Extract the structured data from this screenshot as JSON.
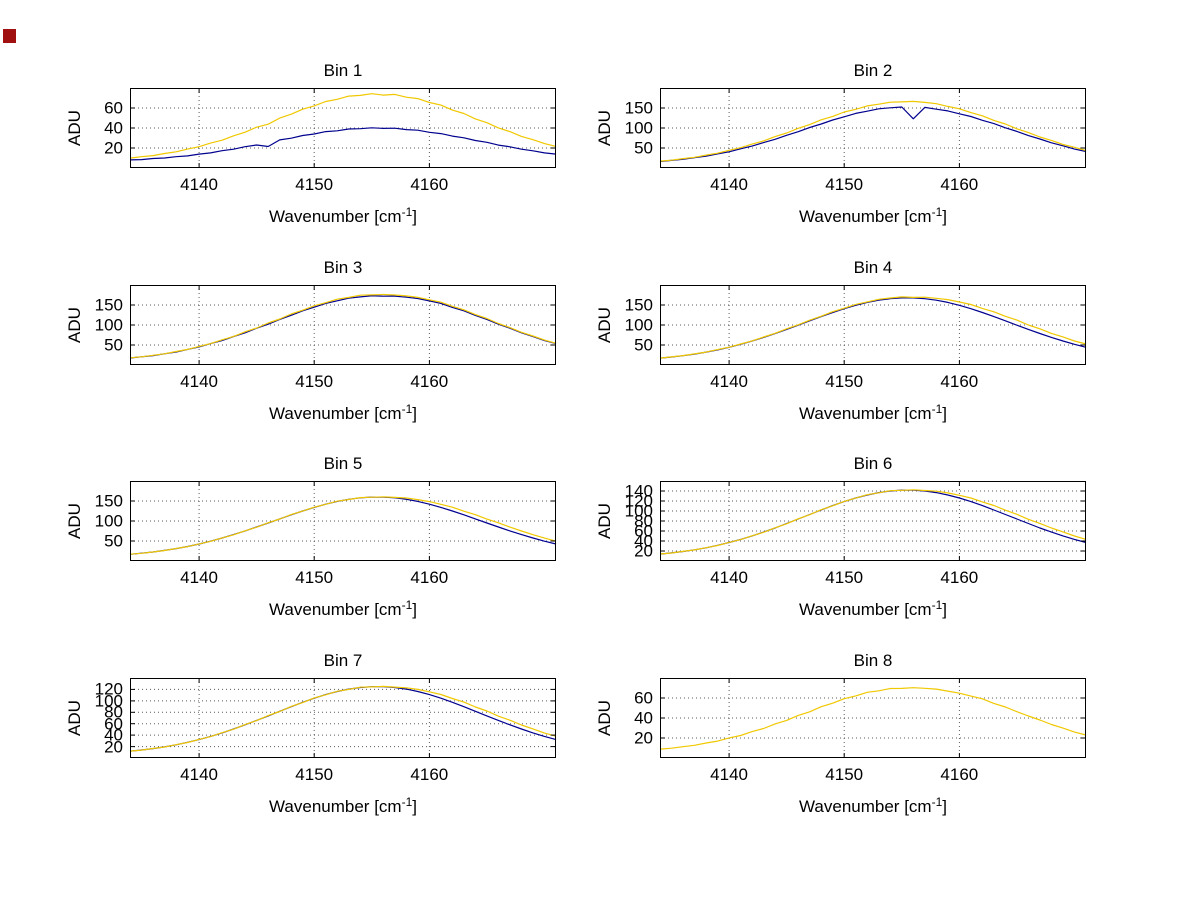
{
  "figure": {
    "background": "#ffffff"
  },
  "labels": {
    "xlabel_pre": "Wavenumber [cm",
    "xlabel_sup": "-1",
    "xlabel_post": "]",
    "ylabel": "ADU"
  },
  "colors": {
    "blue_trace": "#00008f",
    "yellow_trace": "#f0c800",
    "axis": "#000000",
    "grid": "#5a5a5a"
  },
  "x_values": [
    4134,
    4135,
    4136,
    4137,
    4138,
    4139,
    4140,
    4141,
    4142,
    4143,
    4144,
    4145,
    4146,
    4147,
    4148,
    4149,
    4150,
    4151,
    4152,
    4153,
    4154,
    4155,
    4156,
    4157,
    4158,
    4159,
    4160,
    4161,
    4162,
    4163,
    4164,
    4165,
    4166,
    4167,
    4168,
    4169,
    4170,
    4171
  ],
  "chart_data": [
    {
      "type": "line",
      "title": "Bin 1",
      "xlabel": "Wavenumber [cm^-1]",
      "ylabel": "ADU",
      "xlim": [
        4134,
        4171
      ],
      "ylim": [
        0,
        80
      ],
      "xticks": [
        4140,
        4150,
        4160
      ],
      "yticks": [
        20,
        40,
        60
      ],
      "grid": true,
      "series": [
        {
          "name": "blue-trace",
          "color": "#00008f",
          "values": [
            8.1,
            8.4,
            9.5,
            10.0,
            11.3,
            12.1,
            13.9,
            15.1,
            17.3,
            18.8,
            21.3,
            23.0,
            21.5,
            28.1,
            29.8,
            32.5,
            34.0,
            36.4,
            37.2,
            39.0,
            39.3,
            40.2,
            39.6,
            39.8,
            38.4,
            37.8,
            35.7,
            34.4,
            31.9,
            30.2,
            27.5,
            25.7,
            22.9,
            21.2,
            18.8,
            17.2,
            15.1,
            13.9
          ]
        },
        {
          "name": "yellow-trace",
          "color": "#f0c800",
          "values": [
            9.9,
            11.3,
            12.4,
            14.5,
            16.2,
            18.9,
            21.3,
            24.9,
            27.8,
            32.2,
            35.8,
            40.8,
            43.8,
            49.9,
            53.8,
            58.8,
            62.1,
            66.5,
            68.7,
            71.9,
            72.6,
            74.3,
            72.9,
            73.6,
            70.8,
            69.4,
            65.5,
            62.9,
            57.9,
            54.5,
            49.1,
            45.3,
            40.1,
            36.4,
            31.6,
            28.3,
            24.4,
            21.6
          ]
        }
      ]
    },
    {
      "type": "line",
      "title": "Bin 2",
      "xlabel": "Wavenumber [cm^-1]",
      "ylabel": "ADU",
      "xlim": [
        4134,
        4171
      ],
      "ylim": [
        0,
        200
      ],
      "xticks": [
        4140,
        4150,
        4160
      ],
      "yticks": [
        50,
        100,
        150
      ],
      "grid": true,
      "series": [
        {
          "name": "blue-trace",
          "color": "#00008f",
          "values": [
            16.2,
            18.9,
            21.7,
            25.8,
            29.6,
            35.3,
            40.6,
            47.9,
            54.8,
            63.6,
            71.8,
            81.7,
            90.7,
            101.2,
            110.1,
            120.1,
            127.9,
            136.4,
            142.0,
            147.9,
            150.6,
            152.4,
            123.0,
            151.6,
            147.1,
            142.8,
            135.6,
            128.7,
            119.3,
            110.9,
            100.4,
            91.5,
            81.0,
            72.5,
            62.9,
            55.5,
            47.2,
            41.3
          ]
        },
        {
          "name": "yellow-trace",
          "color": "#f0c800",
          "values": [
            17.3,
            19.6,
            23.4,
            26.8,
            32.2,
            37.1,
            44.3,
            50.8,
            59.8,
            67.8,
            78.5,
            87.4,
            99.2,
            108.6,
            120.5,
            129.1,
            139.9,
            146.8,
            155.3,
            159.4,
            164.6,
            165.2,
            166.4,
            164.1,
            160.8,
            153.9,
            148.0,
            138.5,
            130.4,
            119.1,
            109.9,
            97.9,
            88.6,
            77.4,
            68.9,
            58.8,
            51.7,
            43.5
          ]
        }
      ]
    },
    {
      "type": "line",
      "title": "Bin 3",
      "xlabel": "Wavenumber [cm^-1]",
      "ylabel": "ADU",
      "xlim": [
        4134,
        4171
      ],
      "ylim": [
        0,
        200
      ],
      "xticks": [
        4140,
        4150,
        4160
      ],
      "yticks": [
        50,
        100,
        150
      ],
      "grid": true,
      "series": [
        {
          "name": "blue-trace",
          "color": "#00008f",
          "values": [
            17.4,
            20.5,
            23.6,
            28.0,
            32.6,
            39.0,
            45.2,
            53.4,
            61.3,
            71.2,
            80.5,
            91.9,
            102.1,
            114.0,
            124.2,
            135.5,
            144.5,
            154.0,
            160.6,
            167.0,
            170.2,
            173.1,
            171.9,
            172.2,
            169.5,
            166.2,
            160.3,
            153.9,
            144.1,
            135.4,
            124.0,
            114.1,
            102.0,
            92.1,
            80.4,
            71.3,
            61.1,
            53.5
          ]
        },
        {
          "name": "yellow-trace",
          "color": "#f0c800",
          "values": [
            17.9,
            20.4,
            24.3,
            28.1,
            33.7,
            39.0,
            46.5,
            53.5,
            63.1,
            71.6,
            82.9,
            92.6,
            104.9,
            115.0,
            127.4,
            136.9,
            148.1,
            155.8,
            164.4,
            169.1,
            174.5,
            175.2,
            176.3,
            174.9,
            172.8,
            168.9,
            163.1,
            156.9,
            146.8,
            137.9,
            126.1,
            116.2,
            103.7,
            93.6,
            81.8,
            72.4,
            62.2,
            54.3
          ]
        }
      ]
    },
    {
      "type": "line",
      "title": "Bin 4",
      "xlabel": "Wavenumber [cm^-1]",
      "ylabel": "ADU",
      "xlim": [
        4134,
        4171
      ],
      "ylim": [
        0,
        200
      ],
      "xticks": [
        4140,
        4150,
        4160
      ],
      "yticks": [
        50,
        100,
        150
      ],
      "grid": true,
      "series": [
        {
          "name": "blue-trace",
          "color": "#00008f",
          "values": [
            17.1,
            20.0,
            23.3,
            27.3,
            32.2,
            37.8,
            44.3,
            51.7,
            60.0,
            69.0,
            78.7,
            89.0,
            99.6,
            110.4,
            121.1,
            131.3,
            140.8,
            149.2,
            156.4,
            162.0,
            165.8,
            167.8,
            167.8,
            165.8,
            162.0,
            156.4,
            149.2,
            140.8,
            131.3,
            121.1,
            110.4,
            99.6,
            89.0,
            78.7,
            69.0,
            60.0,
            51.7,
            44.3
          ]
        },
        {
          "name": "yellow-trace",
          "color": "#f0c800",
          "values": [
            17.2,
            20.3,
            23.4,
            27.8,
            32.3,
            38.5,
            44.5,
            52.5,
            60.3,
            70.1,
            79.2,
            90.4,
            100.4,
            112.1,
            122.1,
            133.2,
            142.0,
            151.4,
            157.8,
            164.3,
            167.4,
            170.2,
            168.9,
            169.4,
            166.8,
            163.5,
            157.6,
            151.3,
            141.6,
            133.0,
            121.8,
            112.2,
            100.1,
            90.6,
            78.9,
            70.2,
            60.1,
            52.6
          ]
        }
      ]
    },
    {
      "type": "line",
      "title": "Bin 5",
      "xlabel": "Wavenumber [cm^-1]",
      "ylabel": "ADU",
      "xlim": [
        4134,
        4171
      ],
      "ylim": [
        0,
        200
      ],
      "xticks": [
        4140,
        4150,
        4160
      ],
      "yticks": [
        50,
        100,
        150
      ],
      "grid": true,
      "series": [
        {
          "name": "blue-trace",
          "color": "#00008f",
          "values": [
            16.8,
            19.4,
            22.5,
            26.4,
            31.0,
            36.3,
            42.5,
            49.5,
            57.4,
            65.9,
            75.2,
            85.0,
            95.1,
            105.3,
            115.4,
            125.1,
            134.1,
            142.1,
            148.9,
            154.2,
            157.9,
            159.8,
            159.8,
            157.9,
            154.2,
            148.9,
            142.1,
            134.1,
            125.1,
            115.4,
            105.3,
            95.1,
            85.0,
            75.2,
            65.9,
            57.4,
            49.5,
            42.5
          ]
        },
        {
          "name": "yellow-trace",
          "color": "#f0c800",
          "values": [
            16.9,
            19.3,
            22.6,
            26.2,
            31.2,
            36.1,
            42.8,
            49.2,
            57.7,
            65.6,
            75.6,
            84.6,
            95.6,
            104.9,
            115.9,
            124.7,
            134.6,
            141.8,
            149.4,
            153.8,
            158.4,
            159.4,
            160.2,
            159.0,
            157.4,
            153.6,
            148.5,
            141.7,
            134.5,
            124.6,
            115.8,
            104.8,
            95.5,
            84.7,
            75.1,
            65.8,
            57.2,
            49.6
          ]
        }
      ]
    },
    {
      "type": "line",
      "title": "Bin 6",
      "xlabel": "Wavenumber [cm^-1]",
      "ylabel": "ADU",
      "xlim": [
        4134,
        4171
      ],
      "ylim": [
        0,
        160
      ],
      "xticks": [
        4140,
        4150,
        4160
      ],
      "yticks": [
        20,
        40,
        60,
        80,
        100,
        120,
        140
      ],
      "grid": true,
      "series": [
        {
          "name": "blue-trace",
          "color": "#00008f",
          "values": [
            13.8,
            16.2,
            19.0,
            22.4,
            26.5,
            31.3,
            36.9,
            43.1,
            50.2,
            57.8,
            66.1,
            74.9,
            83.9,
            93.1,
            102.1,
            110.8,
            118.8,
            126.0,
            132.1,
            136.8,
            140.1,
            141.8,
            141.8,
            140.1,
            136.8,
            132.1,
            126.0,
            118.8,
            110.8,
            102.1,
            93.1,
            83.9,
            74.9,
            66.1,
            57.8,
            50.2,
            43.1,
            36.9
          ]
        },
        {
          "name": "yellow-trace",
          "color": "#f0c800",
          "values": [
            13.9,
            16.1,
            19.2,
            22.2,
            26.7,
            31.1,
            37.2,
            42.8,
            50.5,
            57.5,
            66.5,
            74.5,
            84.4,
            92.7,
            102.6,
            110.4,
            119.3,
            125.7,
            132.6,
            136.4,
            140.7,
            141.4,
            142.3,
            141.1,
            139.6,
            136.2,
            131.5,
            125.9,
            118.3,
            111.1,
            101.6,
            93.4,
            83.5,
            75.2,
            66.0,
            58.1,
            49.9,
            43.3
          ]
        }
      ]
    },
    {
      "type": "line",
      "title": "Bin 7",
      "xlabel": "Wavenumber [cm^-1]",
      "ylabel": "ADU",
      "xlim": [
        4134,
        4171
      ],
      "ylim": [
        0,
        140
      ],
      "xticks": [
        4140,
        4150,
        4160
      ],
      "yticks": [
        20,
        40,
        60,
        80,
        100,
        120
      ],
      "grid": true,
      "series": [
        {
          "name": "blue-trace",
          "color": "#00008f",
          "values": [
            11.9,
            14.0,
            16.5,
            19.5,
            23.1,
            27.4,
            32.2,
            37.8,
            44.0,
            50.7,
            58.1,
            65.8,
            73.7,
            81.8,
            89.8,
            97.4,
            104.6,
            110.9,
            116.3,
            120.5,
            123.3,
            124.8,
            124.8,
            123.3,
            120.5,
            116.3,
            110.9,
            104.6,
            97.4,
            89.8,
            81.8,
            73.7,
            65.8,
            58.1,
            50.7,
            44.0,
            37.8,
            32.2
          ]
        },
        {
          "name": "yellow-trace",
          "color": "#f0c800",
          "values": [
            12.0,
            13.9,
            16.7,
            19.3,
            23.3,
            27.2,
            32.5,
            37.5,
            44.3,
            50.4,
            58.5,
            65.4,
            74.2,
            81.4,
            90.3,
            97.0,
            105.1,
            110.6,
            116.8,
            120.1,
            123.9,
            124.4,
            125.3,
            124.1,
            122.8,
            120.0,
            115.8,
            111.2,
            104.1,
            97.8,
            89.3,
            82.2,
            73.2,
            66.1,
            57.7,
            51.0,
            43.6,
            38.1
          ]
        }
      ]
    },
    {
      "type": "line",
      "title": "Bin 8",
      "xlabel": "Wavenumber [cm^-1]",
      "ylabel": "ADU",
      "xlim": [
        4134,
        4171
      ],
      "ylim": [
        0,
        80
      ],
      "xticks": [
        4140,
        4150,
        4160
      ],
      "yticks": [
        20,
        40,
        60
      ],
      "grid": true,
      "series": [
        {
          "name": "yellow-trace",
          "color": "#f0c800",
          "values": [
            8.9,
            9.8,
            11.3,
            12.7,
            15.0,
            16.9,
            20.1,
            22.5,
            26.4,
            29.5,
            34.1,
            37.6,
            42.6,
            46.2,
            51.3,
            54.8,
            59.3,
            62.1,
            65.7,
            67.2,
            69.5,
            69.6,
            70.3,
            69.7,
            68.9,
            66.9,
            64.8,
            61.9,
            59.2,
            54.6,
            51.0,
            46.3,
            42.0,
            38.0,
            33.5,
            29.9,
            25.9,
            23.0
          ]
        }
      ]
    }
  ]
}
